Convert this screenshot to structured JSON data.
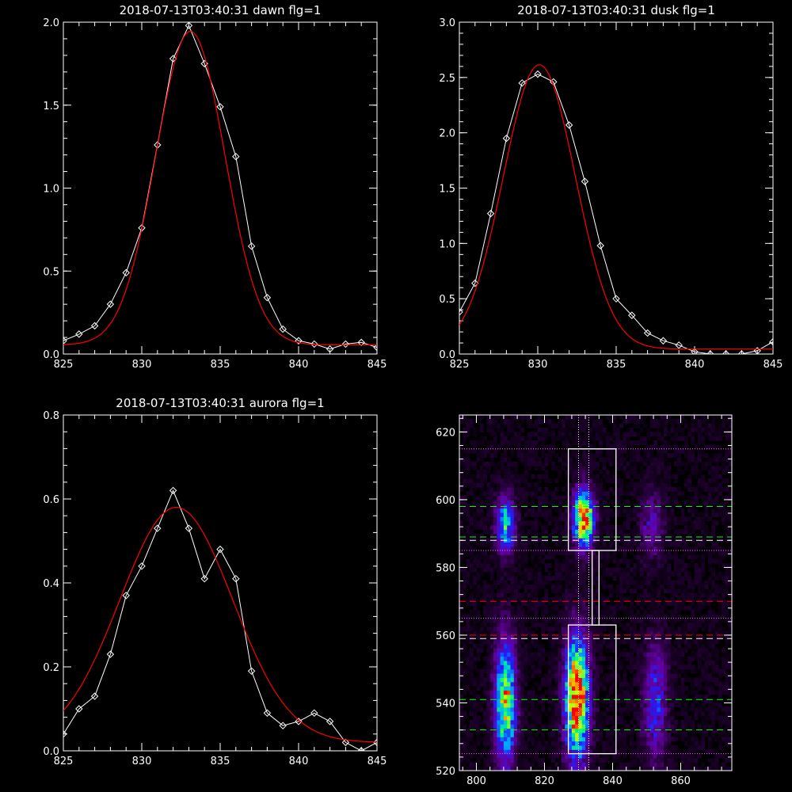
{
  "chart_data": [
    {
      "type": "line",
      "title": "2018-07-13T03:40:31 dawn flg=1",
      "xlabel": "",
      "ylabel": "",
      "xlim": [
        825,
        845
      ],
      "ylim": [
        0,
        2.0
      ],
      "xticks": [
        "825",
        "830",
        "835",
        "840",
        "845"
      ],
      "yticks": [
        "0.0",
        "0.5",
        "1.0",
        "1.5",
        "2.0"
      ],
      "x": [
        825,
        826,
        827,
        828,
        829,
        830,
        831,
        832,
        833,
        834,
        835,
        836,
        837,
        838,
        839,
        840,
        841,
        842,
        843,
        844,
        845
      ],
      "series": [
        {
          "color": "#ffffff",
          "markers": "diamond",
          "values": [
            0.08,
            0.12,
            0.17,
            0.3,
            0.49,
            0.76,
            1.26,
            1.78,
            1.98,
            1.75,
            1.49,
            1.19,
            0.65,
            0.34,
            0.15,
            0.08,
            0.06,
            0.03,
            0.06,
            0.07,
            0.04
          ]
        },
        {
          "color": "#ff0000",
          "markers": "none",
          "fit": "gaussian",
          "params": {
            "amplitude": 1.89,
            "center": 833.1,
            "sigma": 2.2,
            "offset": 0.055
          }
        }
      ]
    },
    {
      "type": "line",
      "title": "2018-07-13T03:40:31 dusk flg=1",
      "xlabel": "",
      "ylabel": "",
      "xlim": [
        825,
        845
      ],
      "ylim": [
        0,
        3.0
      ],
      "xticks": [
        "825",
        "830",
        "835",
        "840",
        "845"
      ],
      "yticks": [
        "0.0",
        "0.5",
        "1.0",
        "1.5",
        "2.0",
        "2.5",
        "3.0"
      ],
      "x": [
        825,
        826,
        827,
        828,
        829,
        830,
        831,
        832,
        833,
        834,
        835,
        836,
        837,
        838,
        839,
        840,
        841,
        842,
        843,
        844,
        845
      ],
      "series": [
        {
          "color": "#ffffff",
          "markers": "diamond",
          "values": [
            0.38,
            0.64,
            1.27,
            1.95,
            2.45,
            2.53,
            2.46,
            2.07,
            1.56,
            0.98,
            0.5,
            0.35,
            0.19,
            0.12,
            0.08,
            0.02,
            0.0,
            0.0,
            0.0,
            0.03,
            0.11
          ]
        },
        {
          "color": "#ff0000",
          "markers": "none",
          "fit": "gaussian",
          "params": {
            "amplitude": 2.57,
            "center": 830.1,
            "sigma": 2.3,
            "offset": 0.045
          }
        }
      ]
    },
    {
      "type": "line",
      "title": "2018-07-13T03:40:31 aurora flg=1",
      "xlabel": "",
      "ylabel": "",
      "xlim": [
        825,
        845
      ],
      "ylim": [
        0,
        0.8
      ],
      "xticks": [
        "825",
        "830",
        "835",
        "840",
        "845"
      ],
      "yticks": [
        "0.0",
        "0.2",
        "0.4",
        "0.6",
        "0.8"
      ],
      "x": [
        825,
        826,
        827,
        828,
        829,
        830,
        831,
        832,
        833,
        834,
        835,
        836,
        837,
        838,
        839,
        840,
        841,
        842,
        843,
        844,
        845
      ],
      "series": [
        {
          "color": "#ffffff",
          "markers": "diamond",
          "values": [
            0.04,
            0.1,
            0.13,
            0.23,
            0.37,
            0.44,
            0.53,
            0.62,
            0.53,
            0.41,
            0.48,
            0.41,
            0.19,
            0.09,
            0.06,
            0.07,
            0.09,
            0.07,
            0.02,
            0.0,
            0.02
          ]
        },
        {
          "color": "#ff0000",
          "markers": "none",
          "fit": "gaussian",
          "params": {
            "amplitude": 0.56,
            "center": 832.2,
            "sigma": 3.6,
            "offset": 0.02
          }
        }
      ]
    },
    {
      "type": "heatmap",
      "title": "",
      "xlabel": "",
      "ylabel": "",
      "xlim": [
        795,
        875
      ],
      "ylim": [
        520,
        625
      ],
      "xticks": [
        "800",
        "820",
        "840",
        "860"
      ],
      "yticks": [
        "520",
        "540",
        "560",
        "580",
        "600",
        "620"
      ],
      "colormap": "rainbow",
      "blobs": [
        {
          "x": 808,
          "y": 540,
          "sx": 2.2,
          "sy": 13,
          "amp": 0.78
        },
        {
          "x": 808,
          "y": 592,
          "sx": 2.0,
          "sy": 6,
          "amp": 0.58
        },
        {
          "x": 829,
          "y": 541,
          "sx": 2.5,
          "sy": 13,
          "amp": 1.0
        },
        {
          "x": 831,
          "y": 594,
          "sx": 2.2,
          "sy": 6,
          "amp": 0.92
        },
        {
          "x": 852,
          "y": 540,
          "sx": 2.5,
          "sy": 12,
          "amp": 0.38
        },
        {
          "x": 851,
          "y": 592,
          "sx": 2.5,
          "sy": 7,
          "amp": 0.26
        }
      ],
      "boxes": [
        {
          "x0": 827,
          "x1": 841,
          "y0": 585,
          "y1": 615,
          "color": "#ffffff"
        },
        {
          "x0": 827,
          "x1": 841,
          "y0": 525,
          "y1": 563,
          "color": "#ffffff"
        },
        {
          "x0": 834,
          "x1": 836,
          "y0": 563,
          "y1": 585,
          "color": "#ffffff"
        }
      ],
      "hlines": [
        {
          "y": 615,
          "color": "#ff66ff",
          "style": "dotted"
        },
        {
          "y": 598,
          "color": "#00ff00",
          "style": "dashed"
        },
        {
          "y": 589,
          "color": "#00ff00",
          "style": "dashed"
        },
        {
          "y": 588,
          "color": "#ffffff",
          "style": "dashed"
        },
        {
          "y": 585,
          "color": "#ff66ff",
          "style": "dotted"
        },
        {
          "y": 570,
          "color": "#ff0000",
          "style": "dashed"
        },
        {
          "y": 565,
          "color": "#ff66ff",
          "style": "dotted"
        },
        {
          "y": 560,
          "color": "#ff0000",
          "style": "dashed"
        },
        {
          "y": 559,
          "color": "#ffffff",
          "style": "dashed"
        },
        {
          "y": 541,
          "color": "#00ff00",
          "style": "dashed"
        },
        {
          "y": 532,
          "color": "#00ff00",
          "style": "dashed"
        },
        {
          "y": 525,
          "color": "#ff66ff",
          "style": "dotted"
        }
      ],
      "vlines": [
        {
          "x": 830,
          "color": "#ffffff",
          "style": "dotted"
        },
        {
          "x": 833,
          "color": "#ffffff",
          "style": "dotted"
        }
      ]
    }
  ]
}
